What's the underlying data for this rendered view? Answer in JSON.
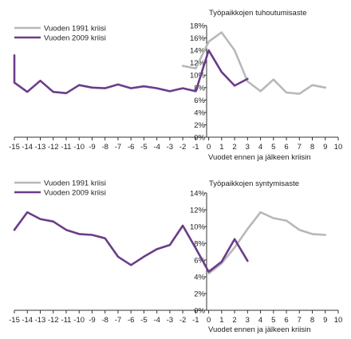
{
  "chart_data": [
    {
      "type": "line",
      "title": "Työpaikkojen tuhoutumisaste",
      "xlabel": "Vuodet ennen ja jälkeen kriisin",
      "ylabel": "",
      "xlim": [
        -15,
        10
      ],
      "ylim": [
        0,
        18
      ],
      "y_ticks": [
        "0%",
        "2%",
        "4%",
        "6%",
        "8%",
        "10%",
        "12%",
        "14%",
        "16%",
        "18%"
      ],
      "x_ticks": [
        "-15",
        "-14",
        "-13",
        "-12",
        "-11",
        "-10",
        "-9",
        "-8",
        "-7",
        "-6",
        "-5",
        "-4",
        "-3",
        "-2",
        "-1",
        "0",
        "1",
        "2",
        "3",
        "4",
        "5",
        "6",
        "7",
        "8",
        "9",
        "10"
      ],
      "legend_position": "top-left",
      "series": [
        {
          "name": "Vuoden 1991 kriisi",
          "color": "#b8b8b8",
          "x": [
            -2,
            -1,
            0,
            1,
            2,
            3,
            4,
            5,
            6,
            7,
            8,
            9
          ],
          "y": [
            11.5,
            11.1,
            15.4,
            16.9,
            14.0,
            9.0,
            7.4,
            9.3,
            7.2,
            7.0,
            8.4,
            8.0
          ]
        },
        {
          "name": "Vuoden 2009 kriisi",
          "color": "#6a3d8a",
          "x": [
            -15,
            -15,
            -14,
            -13,
            -12,
            -11,
            -10,
            -9,
            -8,
            -7,
            -6,
            -5,
            -4,
            -3,
            -2,
            -1,
            0,
            1,
            2,
            3
          ],
          "y": [
            13.2,
            8.8,
            7.3,
            9.1,
            7.3,
            7.1,
            8.4,
            8.0,
            7.9,
            8.5,
            7.9,
            8.2,
            7.9,
            7.4,
            7.9,
            7.4,
            14.0,
            10.5,
            8.3,
            9.4
          ]
        }
      ]
    },
    {
      "type": "line",
      "title": "Työpaikkojen syntymisaste",
      "xlabel": "Vuodet ennen ja jälkeen kriisin",
      "ylabel": "",
      "xlim": [
        -15,
        10
      ],
      "ylim": [
        0,
        14
      ],
      "y_ticks": [
        "0%",
        "2%",
        "4%",
        "6%",
        "8%",
        "10%",
        "12%",
        "14%"
      ],
      "x_ticks": [
        "-15",
        "-14",
        "-13",
        "-12",
        "-11",
        "-10",
        "-9",
        "-8",
        "-7",
        "-6",
        "-5",
        "-4",
        "-3",
        "-2",
        "-1",
        "0",
        "1",
        "2",
        "3",
        "4",
        "5",
        "6",
        "7",
        "8",
        "9",
        "10"
      ],
      "legend_position": "top-left",
      "series": [
        {
          "name": "Vuoden 1991 kriisi",
          "color": "#b8b8b8",
          "x": [
            0,
            1,
            2,
            3,
            4,
            5,
            6,
            7,
            8,
            9
          ],
          "y": [
            4.4,
            5.6,
            7.5,
            9.7,
            11.7,
            11.0,
            10.7,
            9.6,
            9.1,
            9.0
          ]
        },
        {
          "name": "Vuoden 2009 kriisi",
          "color": "#6a3d8a",
          "x": [
            -15,
            -14,
            -13,
            -12,
            -11,
            -10,
            -9,
            -8,
            -7,
            -6,
            -5,
            -4,
            -3,
            -2,
            -1,
            0,
            1,
            2,
            3
          ],
          "y": [
            9.6,
            11.7,
            10.9,
            10.6,
            9.6,
            9.1,
            9.0,
            8.6,
            6.4,
            5.4,
            6.4,
            7.3,
            7.8,
            10.1,
            7.4,
            4.6,
            5.8,
            8.5,
            5.9
          ]
        }
      ]
    }
  ]
}
